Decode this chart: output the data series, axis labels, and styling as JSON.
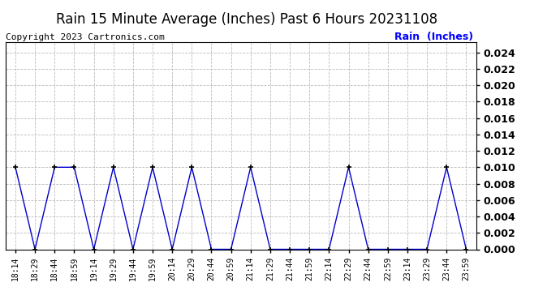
{
  "title": "Rain 15 Minute Average (Inches) Past 6 Hours 20231108",
  "copyright_text": "Copyright 2023 Cartronics.com",
  "legend_label": "Rain  (Inches)",
  "x_labels": [
    "18:14",
    "18:29",
    "18:44",
    "18:59",
    "19:14",
    "19:29",
    "19:44",
    "19:59",
    "20:14",
    "20:29",
    "20:44",
    "20:59",
    "21:14",
    "21:29",
    "21:44",
    "21:59",
    "22:14",
    "22:29",
    "22:44",
    "22:59",
    "23:14",
    "23:29",
    "23:44",
    "23:59"
  ],
  "y_values": [
    0.01,
    0.0,
    0.01,
    0.01,
    0.0,
    0.01,
    0.0,
    0.01,
    0.0,
    0.01,
    0.0,
    0.0,
    0.01,
    0.0,
    0.0,
    0.0,
    0.0,
    0.01,
    0.0,
    0.0,
    0.0,
    0.0,
    0.01,
    0.0
  ],
  "ylim": [
    0.0,
    0.0252
  ],
  "yticks": [
    0.0,
    0.002,
    0.004,
    0.006,
    0.008,
    0.01,
    0.012,
    0.014,
    0.016,
    0.018,
    0.02,
    0.022,
    0.024
  ],
  "line_color": "#0000cc",
  "marker_color": "#000000",
  "grid_color": "#bbbbbb",
  "bg_color": "#ffffff",
  "title_fontsize": 12,
  "copyright_fontsize": 8,
  "legend_color": "#0000ff",
  "xtick_fontsize": 7,
  "ytick_fontsize": 9
}
